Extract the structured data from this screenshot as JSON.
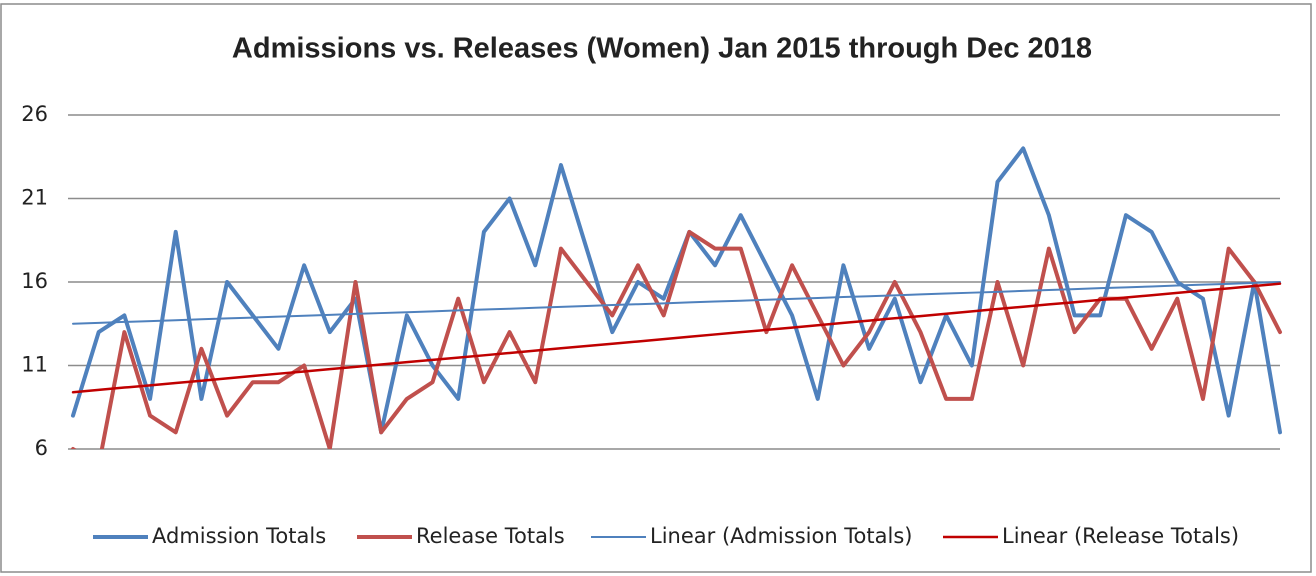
{
  "chart_data": {
    "type": "line",
    "title": "Admissions vs. Releases (Women) Jan 2015 through Dec 2018",
    "categories": [
      null,
      null,
      null,
      null,
      null,
      null,
      null,
      null,
      null,
      null,
      null,
      null,
      null,
      null,
      null,
      null,
      null,
      null,
      null,
      null,
      null,
      null,
      null,
      null,
      null,
      null,
      null,
      null,
      null,
      null,
      null,
      null,
      null,
      null,
      null,
      null,
      null,
      null,
      null,
      null,
      null,
      null,
      null,
      null,
      null,
      null,
      null,
      null
    ],
    "series": [
      {
        "name": "Admission Totals",
        "color": "#4f81bd",
        "line_width": 4,
        "values": [
          8,
          13,
          14,
          9,
          19,
          9,
          16,
          14,
          12,
          17,
          13,
          15,
          7,
          14,
          11,
          9,
          19,
          21,
          17,
          23,
          18,
          13,
          16,
          15,
          19,
          17,
          20,
          17,
          14,
          9,
          17,
          12,
          15,
          10,
          14,
          11,
          22,
          24,
          20,
          14,
          14,
          20,
          19,
          16,
          15,
          8,
          16,
          7
        ]
      },
      {
        "name": "Release Totals",
        "color": "#c0504d",
        "line_width": 4,
        "values": [
          6,
          5,
          13,
          8,
          7,
          12,
          8,
          10,
          10,
          11,
          6,
          16,
          7,
          9,
          10,
          15,
          10,
          13,
          10,
          18,
          16,
          14,
          17,
          14,
          19,
          18,
          18,
          13,
          17,
          14,
          11,
          13,
          16,
          13,
          9,
          9,
          16,
          11,
          18,
          13,
          15,
          15,
          12,
          15,
          9,
          18,
          16,
          13
        ]
      },
      {
        "name": "Linear (Admission Totals)",
        "color": "#4f81bd",
        "line_width": 2,
        "values": [
          13.5,
          13.55,
          13.61,
          13.66,
          13.71,
          13.77,
          13.82,
          13.87,
          13.93,
          13.98,
          14.03,
          14.09,
          14.14,
          14.19,
          14.24,
          14.3,
          14.35,
          14.4,
          14.46,
          14.51,
          14.56,
          14.62,
          14.67,
          14.72,
          14.78,
          14.83,
          14.88,
          14.94,
          14.99,
          15.04,
          15.1,
          15.15,
          15.2,
          15.26,
          15.31,
          15.36,
          15.41,
          15.47,
          15.52,
          15.57,
          15.63,
          15.68,
          15.73,
          15.79,
          15.84,
          15.89,
          15.95,
          16.0
        ]
      },
      {
        "name": "Linear (Release Totals)",
        "color": "#c00000",
        "line_width": 2.5,
        "values": [
          9.4,
          9.54,
          9.68,
          9.81,
          9.95,
          10.09,
          10.23,
          10.37,
          10.51,
          10.64,
          10.78,
          10.92,
          11.06,
          11.2,
          11.34,
          11.47,
          11.61,
          11.75,
          11.89,
          12.03,
          12.17,
          12.3,
          12.44,
          12.58,
          12.72,
          12.86,
          13.0,
          13.13,
          13.27,
          13.41,
          13.55,
          13.69,
          13.83,
          13.96,
          14.1,
          14.24,
          14.38,
          14.52,
          14.66,
          14.79,
          14.93,
          15.07,
          15.21,
          15.35,
          15.49,
          15.62,
          15.76,
          15.9
        ]
      }
    ],
    "ylim": [
      6,
      26
    ],
    "yticks": [
      6,
      11,
      16,
      21,
      26
    ],
    "grid": true,
    "legend": "bottom"
  }
}
